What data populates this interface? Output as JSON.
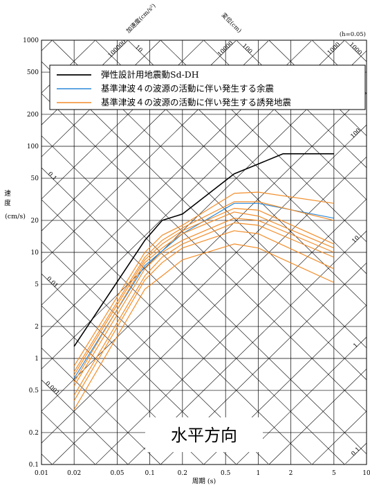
{
  "chart_data": {
    "type": "line",
    "title": "",
    "xlabel": "周期 (s)",
    "ylabel": "速度 (cm/s)",
    "xscale": "log",
    "yscale": "log",
    "xlim": [
      0.01,
      10
    ],
    "ylim": [
      0.1,
      1000
    ],
    "x_ticks": [
      "0.01",
      "0.02",
      "0.05",
      "0.1",
      "0.2",
      "0.5",
      "1",
      "2",
      "5",
      "10"
    ],
    "y_ticks": [
      "0.1",
      "0.2",
      "0.5",
      "1",
      "2",
      "5",
      "10",
      "20",
      "50",
      "100",
      "200",
      "500",
      "1000"
    ],
    "damping_label": "(h=0.05)",
    "direction_label": "水平方向",
    "accel_axis_label": "加速度(cm/s²)",
    "disp_axis_label": "変位(cm)",
    "accel_lines": [
      "100000",
      "10000",
      "1000",
      "100",
      "10",
      "1",
      "0.1"
    ],
    "disp_lines": [
      "1000",
      "100",
      "10",
      "1",
      "0.1",
      "0.01",
      "0.001"
    ],
    "legend": {
      "placement": "top",
      "entries": [
        {
          "label": "弾性設計用地震動Sd-DH",
          "color": "#000000"
        },
        {
          "label": "基準津波４の波源の活動に伴い発生する余震",
          "color": "#2b88d8"
        },
        {
          "label": "基準津波４の波源の活動に伴い発生する誘発地震",
          "color": "#f28c28"
        }
      ]
    },
    "series": [
      {
        "name": "弾性設計用地震動Sd-DH",
        "color": "#000000",
        "width": 1.6,
        "x": [
          0.02,
          0.09,
          0.13,
          0.2,
          0.6,
          1.0,
          1.7,
          5.0
        ],
        "y": [
          1.3,
          13,
          20,
          23,
          55,
          68,
          85,
          85
        ]
      },
      {
        "name": "基準津波４の波源の活動に伴い発生する余震",
        "color": "#2b88d8",
        "width": 1.2,
        "x": [
          0.02,
          0.09,
          0.2,
          0.6,
          1.0,
          5.0
        ],
        "y": [
          0.65,
          7.5,
          15,
          29,
          29,
          21
        ]
      },
      {
        "name": "基準津波４の波源の活動に伴い発生する誘発地震",
        "color": "#f28c28",
        "width": 1.2,
        "x": [
          0.02,
          0.09,
          0.13,
          0.2,
          0.6,
          1.0,
          5.0
        ],
        "y": [
          0.85,
          10,
          14.5,
          18,
          36,
          37,
          29
        ]
      },
      {
        "color": "#f28c28",
        "width": 1.2,
        "x": [
          0.02,
          0.09,
          0.13,
          0.2,
          0.6,
          1.0,
          5.0
        ],
        "y": [
          0.75,
          9,
          13,
          17,
          30,
          30,
          20
        ]
      },
      {
        "color": "#f28c28",
        "width": 1.2,
        "x": [
          0.02,
          0.09,
          0.13,
          0.2,
          0.6,
          1.0,
          5.0
        ],
        "y": [
          0.7,
          8.5,
          12,
          16,
          26,
          25,
          12
        ]
      },
      {
        "color": "#f28c28",
        "width": 1.2,
        "x": [
          0.02,
          0.09,
          0.13,
          0.2,
          0.6,
          1.0,
          5.0
        ],
        "y": [
          0.6,
          8,
          11,
          15,
          24,
          22,
          11
        ]
      },
      {
        "color": "#f28c28",
        "width": 1.2,
        "x": [
          0.02,
          0.09,
          0.13,
          0.2,
          0.6,
          1.0,
          5.0
        ],
        "y": [
          0.55,
          7,
          10,
          13,
          21,
          20,
          10
        ]
      },
      {
        "color": "#f28c28",
        "width": 1.2,
        "x": [
          0.02,
          0.09,
          0.13,
          0.2,
          0.6,
          1.0,
          5.0
        ],
        "y": [
          0.45,
          6,
          9,
          12,
          19,
          18,
          9
        ]
      },
      {
        "color": "#f28c28",
        "width": 1.2,
        "x": [
          0.02,
          0.09,
          0.13,
          0.2,
          0.6,
          1.0,
          5.0
        ],
        "y": [
          0.4,
          5.5,
          8,
          11,
          16,
          15,
          7
        ]
      },
      {
        "color": "#f28c28",
        "width": 1.2,
        "x": [
          0.02,
          0.09,
          0.13,
          0.2,
          0.6,
          1.0,
          5.0
        ],
        "y": [
          0.33,
          4.5,
          6,
          8.5,
          12,
          11,
          5.2
        ]
      }
    ]
  }
}
